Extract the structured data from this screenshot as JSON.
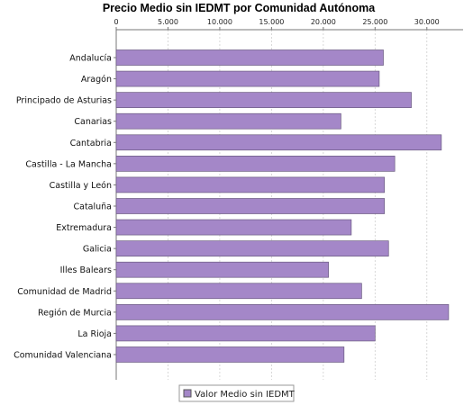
{
  "chart_data": {
    "type": "bar",
    "orientation": "horizontal",
    "title": "Precio Medio sin IEDMT por Comunidad Autónoma",
    "categories": [
      "Andalucía",
      "Aragón",
      "Principado de Asturias",
      "Canarias",
      "Cantabria",
      "Castilla - La Mancha",
      "Castilla y León",
      "Cataluña",
      "Extremadura",
      "Galicia",
      "Illes Balears",
      "Comunidad de Madrid",
      "Región de Murcia",
      "La Rioja",
      "Comunidad Valenciana"
    ],
    "series": [
      {
        "name": "Valor Medio sin IEDMT",
        "color": "#a487c8",
        "values": [
          25800,
          25400,
          28500,
          21700,
          31400,
          26900,
          25900,
          25900,
          22700,
          26300,
          20500,
          23700,
          32100,
          25000,
          22000
        ]
      }
    ],
    "xlim": [
      0,
      33500
    ],
    "xticks": [
      0,
      5000,
      10000,
      15000,
      20000,
      25000,
      30000
    ],
    "xtick_labels": [
      "0",
      "5.000",
      "10.000",
      "15.000",
      "20.000",
      "25.000",
      "30.000"
    ],
    "xaxis_position": "top",
    "grid": true,
    "legend_position": "bottom-center"
  }
}
